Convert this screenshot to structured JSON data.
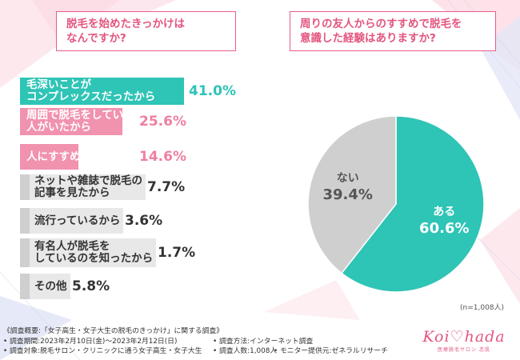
{
  "colors": {
    "teal": "#2ec4b6",
    "pink": "#ef7fa0",
    "gray": "#cfcfcf",
    "gray_label_bg": "#e8e8e8",
    "teal_text": "#2ec4b6",
    "pink_text": "#ef7fa0",
    "accent": "#e3567f"
  },
  "titles": {
    "left": [
      "脱毛を始めたきっかけは",
      "なんですか?"
    ],
    "right": [
      "周りの友人からのすすめで脱毛を",
      "意識した経験はありますか?"
    ]
  },
  "chart_data": [
    {
      "type": "bar",
      "orientation": "horizontal",
      "title": "脱毛を始めたきっかけはなんですか?",
      "unit": "%",
      "categories": [
        "毛深いことがコンプレックスだったから",
        "周囲で脱毛をしている人がいたから",
        "人にすすめられたから",
        "ネットや雑誌で脱毛の記事を見たから",
        "流行っているから",
        "有名人が脱毛をしているのを知ったから",
        "その他"
      ],
      "category_lines": [
        [
          "毛深いことが",
          "コンプレックスだったから"
        ],
        [
          "周囲で脱毛をしている",
          "人がいたから"
        ],
        [
          "人にすすめられたから"
        ],
        [
          "ネットや雑誌で脱毛の",
          "記事を見たから"
        ],
        [
          "流行っているから"
        ],
        [
          "有名人が脱毛を",
          "しているのを知ったから"
        ],
        [
          "その他"
        ]
      ],
      "values": [
        41.0,
        25.6,
        14.6,
        7.7,
        3.6,
        1.7,
        5.8
      ],
      "value_labels": [
        "41.0%",
        "25.6%",
        "14.6%",
        "7.7%",
        "3.6%",
        "1.7%",
        "5.8%"
      ],
      "highlight": [
        "teal",
        "pink",
        "pink",
        "gray",
        "gray",
        "gray",
        "gray"
      ]
    },
    {
      "type": "pie",
      "title": "周りの友人からのすすめで脱毛を意識した経験はありますか?",
      "labels": [
        "ある",
        "ない"
      ],
      "values": [
        60.6,
        39.4
      ],
      "value_labels": [
        "60.6%",
        "39.4%"
      ],
      "colors": [
        "#2ec4b6",
        "#cfcfcf"
      ],
      "sample_size": "(n=1,008人)"
    }
  ],
  "footer": {
    "line1": "《調査概要:「女子高生・女子大生の脱毛のきっかけ」に関する調査》",
    "line2_col1": "• 調査期間:2023年2月10日(金)〜2023年2月12日(日)",
    "line2_col2": "• 調査方法:インターネット調査",
    "line3_col1": "• 調査対象:脱毛サロン・クリニックに通う女子高生・女子大生",
    "line3_col2": "• 調査人数:1,008人",
    "line3_col3": "• モニター提供元:ゼネラルリサーチ"
  },
  "logo": {
    "brand": "Koi♡hada",
    "sub": "医療脱毛サロン 恋肌"
  }
}
